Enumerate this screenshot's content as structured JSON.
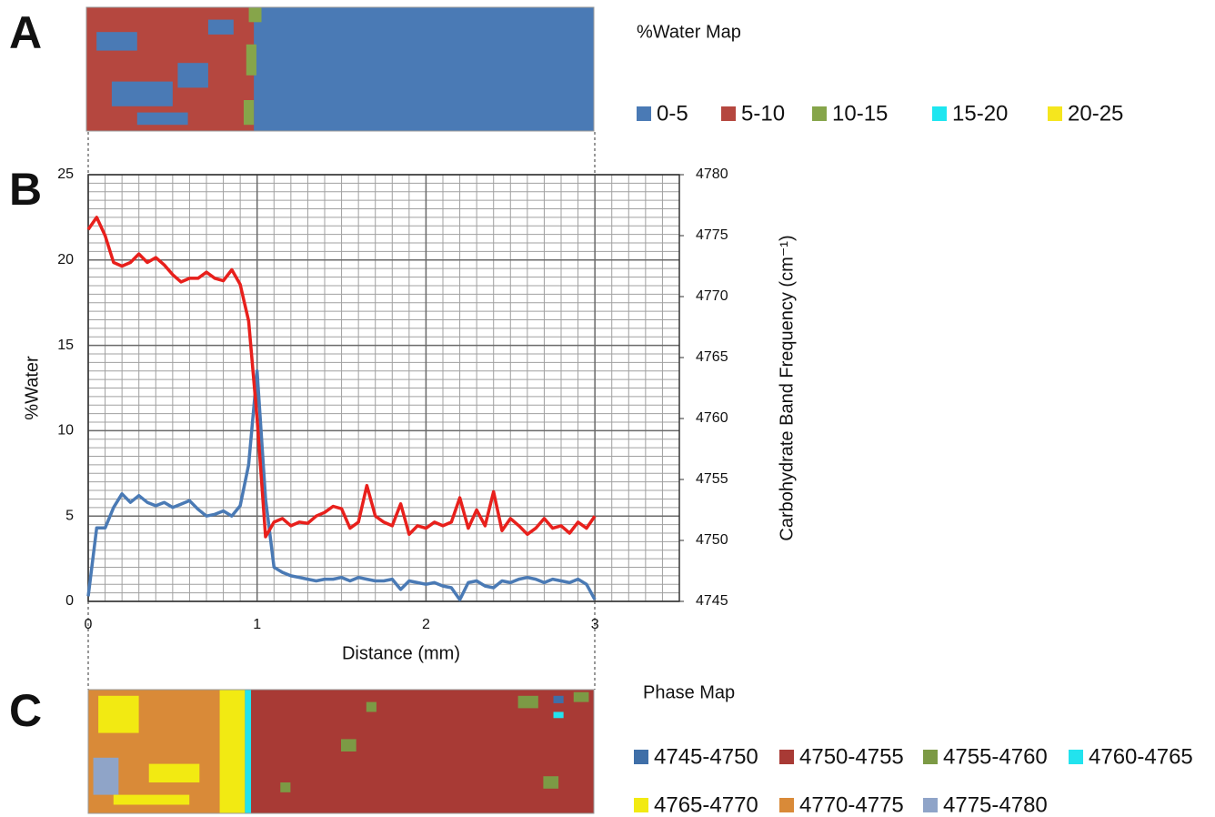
{
  "chart_data": [
    {
      "type": "map",
      "label": "A",
      "title": "%Water Map",
      "legend": [
        {
          "name": "0-5",
          "color": "#4a7ab5"
        },
        {
          "name": "5-10",
          "color": "#b5473f"
        },
        {
          "name": "10-15",
          "color": "#86a54a"
        },
        {
          "name": "15-20",
          "color": "#1ee6f0"
        },
        {
          "name": "20-25",
          "color": "#f5e61e"
        }
      ]
    },
    {
      "type": "line",
      "label": "B",
      "x_label": "Distance (mm)",
      "y_label": "%Water",
      "y2_label": "Carbohydrate Band Frequency (cm⁻¹)",
      "xlim": [
        0,
        3.5
      ],
      "xticks": [
        0,
        1,
        2,
        3
      ],
      "ylim": [
        0,
        25
      ],
      "yticks": [
        0,
        5,
        10,
        15,
        20,
        25
      ],
      "y2lim": [
        4745,
        4780
      ],
      "y2ticks": [
        4745,
        4750,
        4755,
        4760,
        4765,
        4770,
        4775,
        4780
      ],
      "grid": true,
      "minor_grid": {
        "x": 0.1,
        "y": 0.5
      },
      "x": [
        0,
        0.05,
        0.1,
        0.15,
        0.2,
        0.25,
        0.3,
        0.35,
        0.4,
        0.45,
        0.5,
        0.55,
        0.6,
        0.65,
        0.7,
        0.75,
        0.8,
        0.85,
        0.9,
        0.95,
        1,
        1.05,
        1.1,
        1.15,
        1.2,
        1.25,
        1.3,
        1.35,
        1.4,
        1.45,
        1.5,
        1.55,
        1.6,
        1.65,
        1.7,
        1.75,
        1.8,
        1.85,
        1.9,
        1.95,
        2,
        2.05,
        2.1,
        2.15,
        2.2,
        2.25,
        2.3,
        2.35,
        2.4,
        2.45,
        2.5,
        2.55,
        2.6,
        2.65,
        2.7,
        2.75,
        2.8,
        2.85,
        2.9,
        2.95,
        3
      ],
      "series": [
        {
          "color": "#4a7ab5",
          "axis": "y",
          "values": [
            0.3,
            4.3,
            4.3,
            5.5,
            6.3,
            5.8,
            6.2,
            5.8,
            5.6,
            5.8,
            5.5,
            5.7,
            5.9,
            5.4,
            5.0,
            5.1,
            5.3,
            5.0,
            5.6,
            8.0,
            13.5,
            6.0,
            2.0,
            1.7,
            1.5,
            1.4,
            1.3,
            1.2,
            1.3,
            1.3,
            1.4,
            1.2,
            1.4,
            1.3,
            1.2,
            1.2,
            1.3,
            0.7,
            1.2,
            1.1,
            1.0,
            1.1,
            0.9,
            0.8,
            0.1,
            1.1,
            1.2,
            0.9,
            0.8,
            1.2,
            1.1,
            1.3,
            1.4,
            1.3,
            1.1,
            1.3,
            1.2,
            1.1,
            1.3,
            1.0,
            0.1
          ]
        },
        {
          "color": "#e8201c",
          "axis": "y2",
          "values": [
            4775.5,
            4776.5,
            4775.0,
            4772.8,
            4772.5,
            4772.8,
            4773.5,
            4772.8,
            4773.2,
            4772.6,
            4771.8,
            4771.2,
            4771.5,
            4771.5,
            4772.0,
            4771.5,
            4771.3,
            4772.2,
            4771.0,
            4768.0,
            4760.0,
            4750.3,
            4751.5,
            4751.8,
            4751.2,
            4751.5,
            4751.4,
            4752.0,
            4752.3,
            4752.8,
            4752.6,
            4751.0,
            4751.5,
            4754.5,
            4752.0,
            4751.5,
            4751.2,
            4753.0,
            4750.5,
            4751.2,
            4751.0,
            4751.5,
            4751.2,
            4751.5,
            4753.5,
            4751.0,
            4752.5,
            4751.2,
            4754.0,
            4750.8,
            4751.8,
            4751.2,
            4750.5,
            4751.0,
            4751.8,
            4751.0,
            4751.2,
            4750.6,
            4751.5,
            4751.0,
            4752.0
          ]
        }
      ]
    },
    {
      "type": "map",
      "label": "C",
      "title": "Phase Map",
      "legend": [
        {
          "name": "4745-4750",
          "color": "#3f6fa8"
        },
        {
          "name": "4750-4755",
          "color": "#a83a35"
        },
        {
          "name": "4755-4760",
          "color": "#7c9a45"
        },
        {
          "name": "4760-4765",
          "color": "#22e3ee"
        },
        {
          "name": "4765-4770",
          "color": "#f2ea12"
        },
        {
          "name": "4770-4775",
          "color": "#d98a38"
        },
        {
          "name": "4775-4780",
          "color": "#8fa4c8"
        }
      ]
    }
  ]
}
